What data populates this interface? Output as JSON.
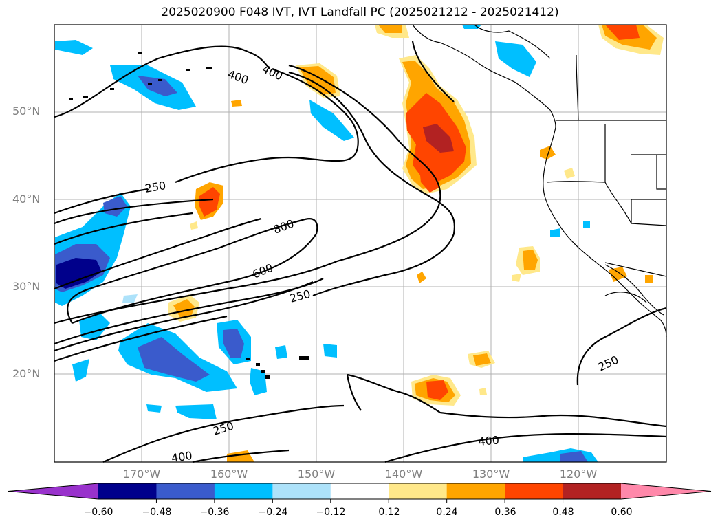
{
  "title": "2025020900 F048 IVT, IVT Landfall PC (2025021212 - 2025021412)",
  "lat_labels": [
    "50°N",
    "40°N",
    "30°N",
    "20°N"
  ],
  "lon_labels": [
    "170°W",
    "160°W",
    "150°W",
    "140°W",
    "130°W",
    "120°W"
  ],
  "contour_labels": [
    "400",
    "400",
    "250",
    "800",
    "600",
    "250",
    "250",
    "400",
    "400",
    "250"
  ],
  "colorbar": {
    "ticks": [
      "−0.60",
      "−0.48",
      "−0.36",
      "−0.24",
      "−0.12",
      "0.12",
      "0.24",
      "0.36",
      "0.48",
      "0.60"
    ],
    "colors": [
      "#9932cc",
      "#00008b",
      "#3a5bcc",
      "#00bfff",
      "#ade2fa",
      "#ffffff",
      "#ffe88a",
      "#ffa500",
      "#ff4500",
      "#b22222",
      "#ff88aa"
    ]
  }
}
